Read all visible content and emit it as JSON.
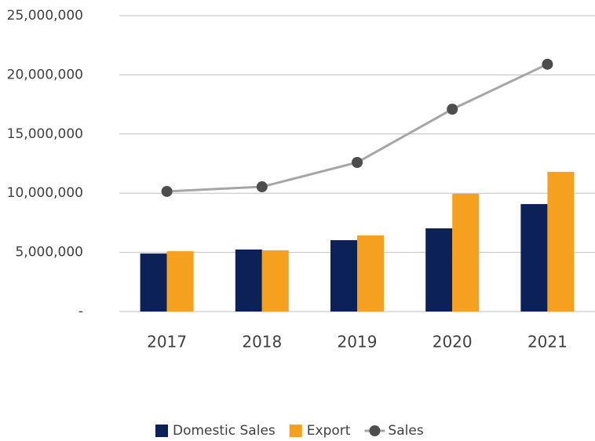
{
  "chart_data": {
    "type": "bar",
    "categories": [
      "2017",
      "2018",
      "2019",
      "2020",
      "2021"
    ],
    "series": [
      {
        "name": "Domestic Sales",
        "type": "bar",
        "color": "#0b2157",
        "values": [
          4900000,
          5240000,
          6030000,
          7030000,
          9080000
        ]
      },
      {
        "name": "Export",
        "type": "bar",
        "color": "#f5a01f",
        "values": [
          5100000,
          5170000,
          6430000,
          9950000,
          11800000
        ]
      },
      {
        "name": "Sales",
        "type": "line",
        "color": "#a6a6a6",
        "marker_color": "#4d4d4d",
        "values": [
          10150000,
          10540000,
          12600000,
          17100000,
          20900000
        ]
      }
    ],
    "ylim": [
      0,
      25000000
    ],
    "yticks": [
      {
        "value": 0,
        "label": "-"
      },
      {
        "value": 5000000,
        "label": "5,000,000"
      },
      {
        "value": 10000000,
        "label": "10,000,000"
      },
      {
        "value": 15000000,
        "label": "15,000,000"
      },
      {
        "value": 20000000,
        "label": "20,000,000"
      },
      {
        "value": 25000000,
        "label": "25,000,000"
      }
    ],
    "grid": true,
    "legend": "bottom"
  }
}
